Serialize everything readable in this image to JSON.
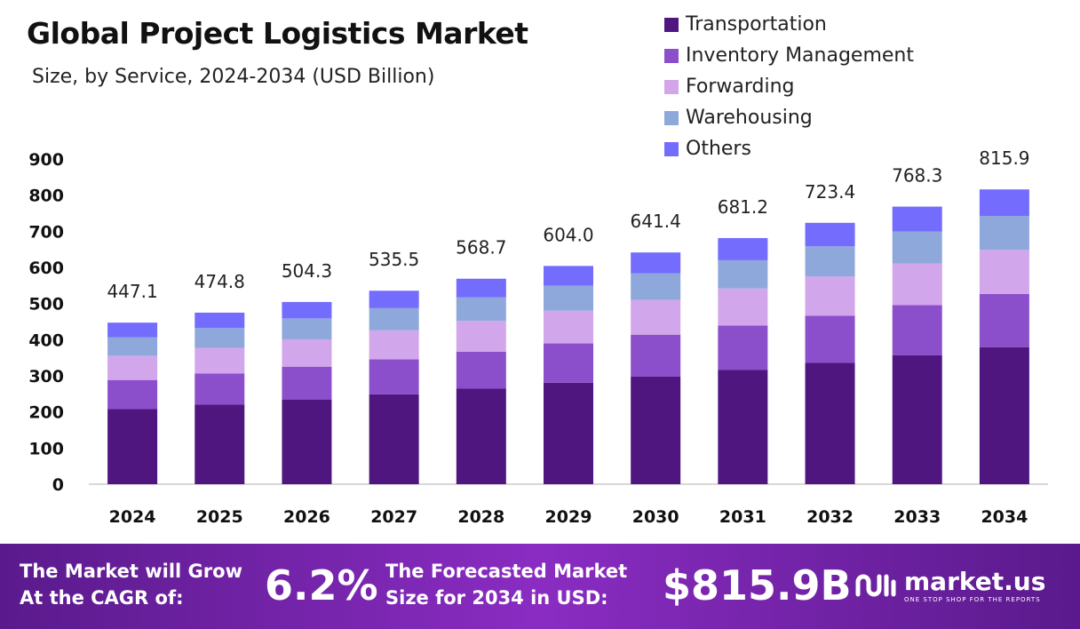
{
  "chart_data": {
    "type": "bar",
    "stacked": true,
    "title": "Global Project Logistics Market",
    "subtitle": "Size, by Service, 2024-2034 (USD Billion)",
    "categories": [
      "2024",
      "2025",
      "2026",
      "2027",
      "2028",
      "2029",
      "2030",
      "2031",
      "2032",
      "2033",
      "2034"
    ],
    "totals": [
      "447.1",
      "474.8",
      "504.3",
      "535.5",
      "568.7",
      "604.0",
      "641.4",
      "681.2",
      "723.4",
      "768.3",
      "815.9"
    ],
    "series": [
      {
        "name": "Transportation",
        "color": "#4f1680",
        "values": [
          207.9,
          220.8,
          234.5,
          249.0,
          264.4,
          280.9,
          298.3,
          316.8,
          336.4,
          357.3,
          379.4
        ]
      },
      {
        "name": "Inventory Management",
        "color": "#8c4fcb",
        "values": [
          80.5,
          85.5,
          90.8,
          96.4,
          102.4,
          108.7,
          115.5,
          122.6,
          130.2,
          138.3,
          146.9
        ]
      },
      {
        "name": "Forwarding",
        "color": "#d2a6ea",
        "values": [
          67.1,
          71.2,
          75.6,
          80.3,
          85.3,
          90.6,
          96.2,
          102.2,
          108.5,
          115.2,
          122.4
        ]
      },
      {
        "name": "Warehousing",
        "color": "#8fa8db",
        "values": [
          51.4,
          54.6,
          58.0,
          61.6,
          65.4,
          69.5,
          73.8,
          78.3,
          83.2,
          88.4,
          93.8
        ]
      },
      {
        "name": "Others",
        "color": "#736cfc",
        "values": [
          40.2,
          42.7,
          45.4,
          48.2,
          51.2,
          54.3,
          57.6,
          61.3,
          65.1,
          69.1,
          73.4
        ]
      }
    ],
    "yticks": [
      "0",
      "100",
      "200",
      "300",
      "400",
      "500",
      "600",
      "700",
      "800",
      "900"
    ],
    "ylim": [
      0,
      900
    ],
    "grid": false,
    "legend": "top-right"
  },
  "footer": {
    "cagr_label_1": "The Market will Grow",
    "cagr_label_2": "At the CAGR of:",
    "cagr_value": "6.2%",
    "forecast_label_1": "The Forecasted Market",
    "forecast_label_2": "Size for 2034 in USD:",
    "forecast_value": "$815.9B",
    "brand": "market.us",
    "brand_tagline": "ONE STOP SHOP FOR THE REPORTS"
  }
}
